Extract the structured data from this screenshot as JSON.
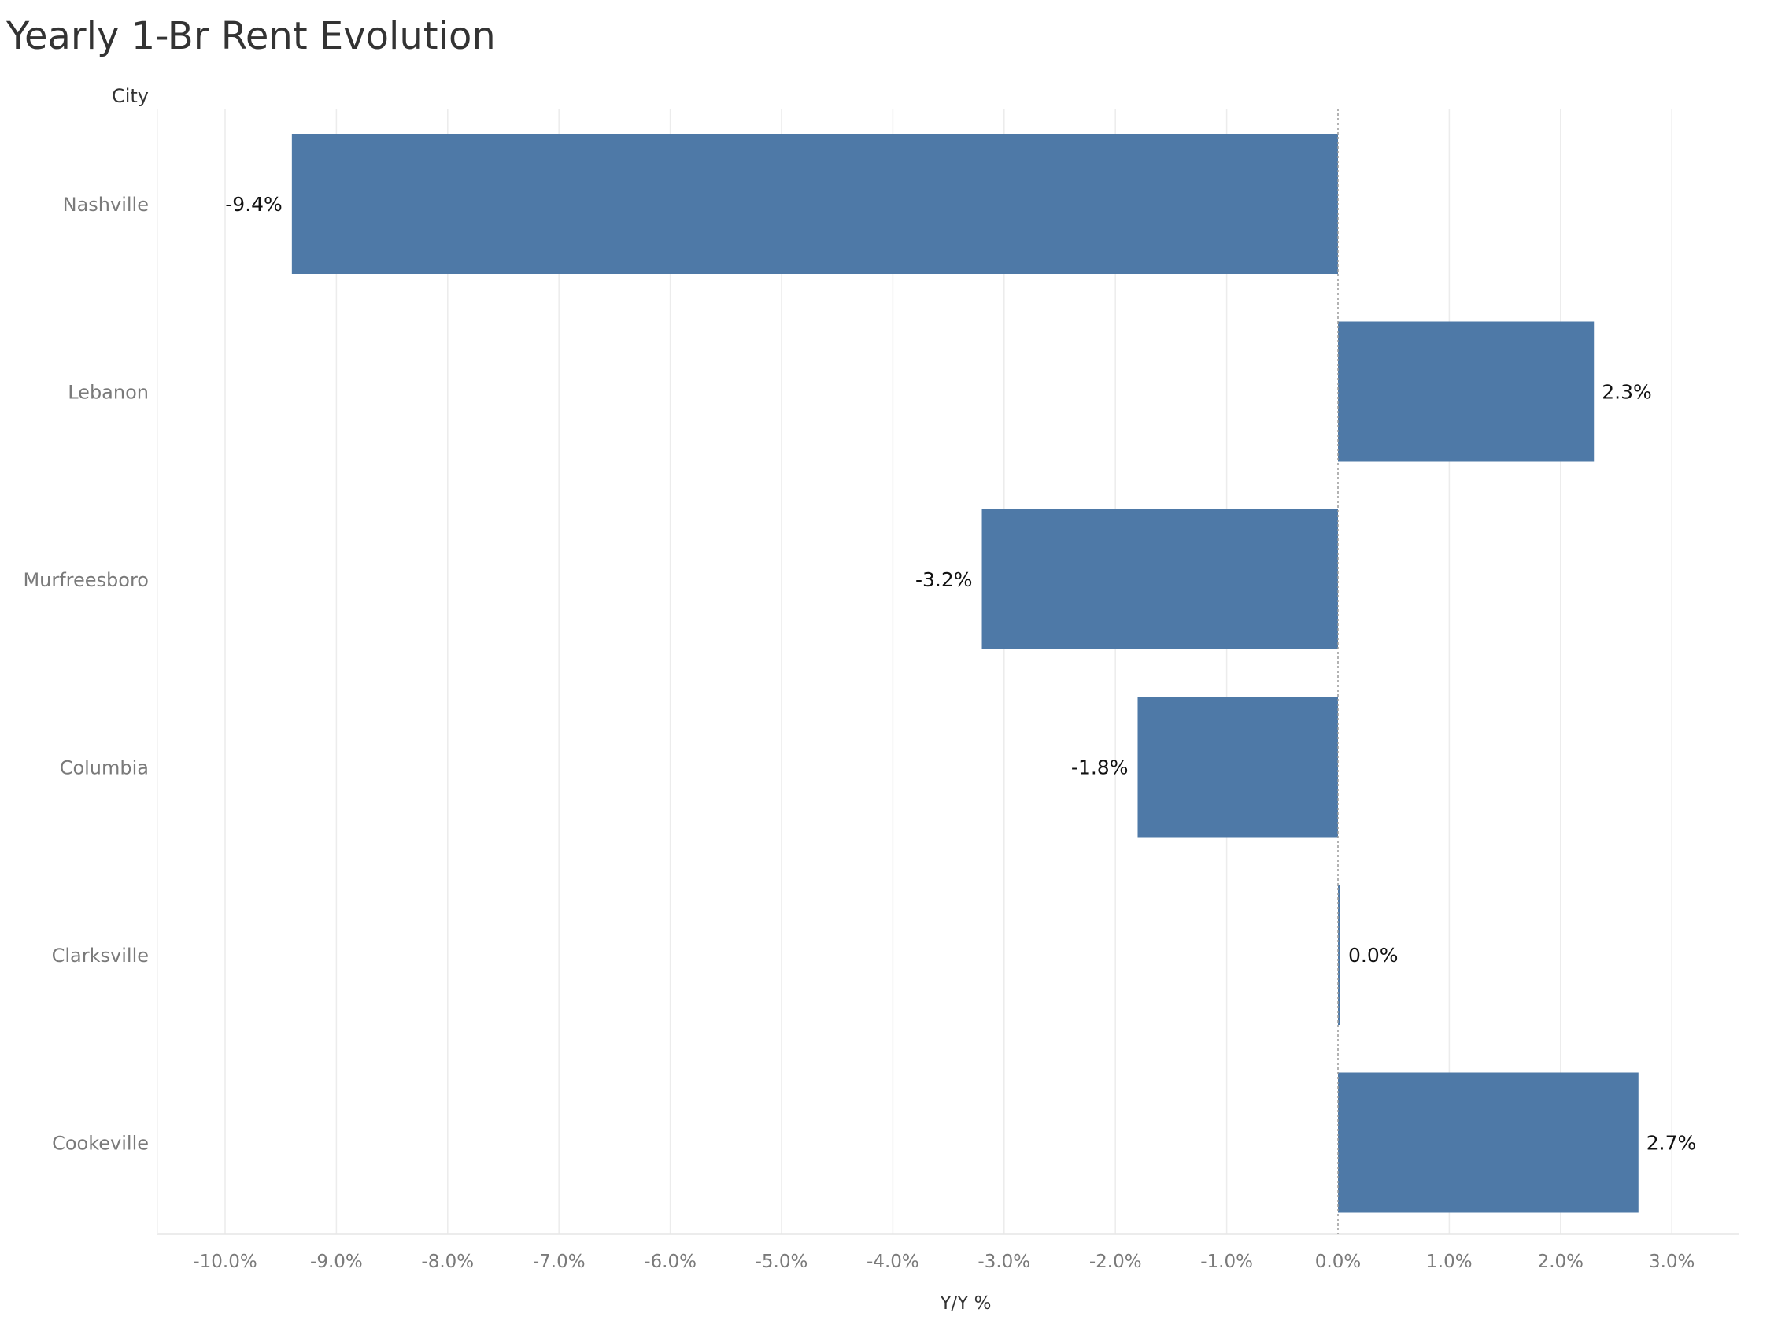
{
  "chart_data": {
    "type": "bar",
    "orientation": "horizontal",
    "title": "Yearly 1-Br Rent Evolution",
    "row_header": "City",
    "xlabel": "Y/Y %",
    "categories": [
      "Nashville",
      "Lebanon",
      "Murfreesboro",
      "Columbia",
      "Clarksville",
      "Cookeville"
    ],
    "values": [
      -9.4,
      2.3,
      -3.2,
      -1.8,
      0.0,
      2.7
    ],
    "value_labels": [
      "-9.4%",
      "2.3%",
      "-3.2%",
      "-1.8%",
      "0.0%",
      "2.7%"
    ],
    "xticks": [
      -10,
      -9,
      -8,
      -7,
      -6,
      -5,
      -4,
      -3,
      -2,
      -1,
      0,
      1,
      2,
      3
    ],
    "xtick_labels": [
      "-10.0%",
      "-9.0%",
      "-8.0%",
      "-7.0%",
      "-6.0%",
      "-5.0%",
      "-4.0%",
      "-3.0%",
      "-2.0%",
      "-1.0%",
      "0.0%",
      "1.0%",
      "2.0%",
      "3.0%"
    ],
    "xlim": [
      -10.6,
      3.5
    ],
    "grid": "vertical",
    "bar_color": "#4e79a7"
  }
}
